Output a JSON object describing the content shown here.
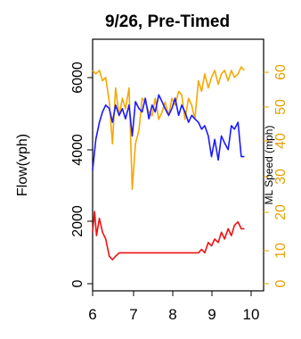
{
  "chart_data": {
    "type": "line",
    "title": "9/26, Pre-Timed",
    "ylabel": "Flow(vph)",
    "y2label": "ML Speed (mph)",
    "xlim": [
      6,
      10
    ],
    "ylim": [
      0,
      6500
    ],
    "y2lim": [
      0,
      65
    ],
    "x_ticks": [
      "6",
      "7",
      "8",
      "9",
      "10"
    ],
    "y_ticks": [
      "0",
      "2000",
      "4000",
      "6000"
    ],
    "y2_ticks": [
      "0",
      "10",
      "20",
      "30",
      "40",
      "50",
      "60"
    ],
    "colors": {
      "speed": "#f5a800",
      "flow": "#1a1aff",
      "ramp": "#ee1111",
      "right_axis": "#e6a200"
    },
    "series": [
      {
        "key": "speed",
        "axis": "right",
        "x": [
          6.0,
          6.08,
          6.17,
          6.25,
          6.33,
          6.42,
          6.5,
          6.58,
          6.67,
          6.75,
          6.83,
          6.92,
          7.0,
          7.08,
          7.17,
          7.25,
          7.33,
          7.42,
          7.5,
          7.58,
          7.67,
          7.75,
          7.83,
          7.92,
          8.0,
          8.08,
          8.17,
          8.25,
          8.33,
          8.42,
          8.5,
          8.58,
          8.67,
          8.75,
          8.83,
          8.92,
          9.0,
          9.08,
          9.17,
          9.25,
          9.33,
          9.42,
          9.5,
          9.58,
          9.67,
          9.75,
          9.83
        ],
        "values": [
          61,
          60,
          61,
          58,
          59,
          52,
          40,
          56,
          48,
          53,
          50,
          56,
          27,
          40,
          44,
          53,
          52,
          49,
          48,
          53,
          47,
          49,
          52,
          48,
          53,
          51,
          55,
          54,
          47,
          53,
          51,
          47,
          58,
          55,
          60,
          56,
          59,
          61,
          57,
          60,
          61,
          58,
          61,
          59,
          60,
          62,
          61
        ]
      },
      {
        "key": "flow",
        "axis": "left",
        "x": [
          6.0,
          6.08,
          6.17,
          6.25,
          6.33,
          6.42,
          6.5,
          6.58,
          6.67,
          6.75,
          6.83,
          6.92,
          7.0,
          7.08,
          7.17,
          7.25,
          7.33,
          7.42,
          7.5,
          7.58,
          7.67,
          7.75,
          7.83,
          7.92,
          8.0,
          8.08,
          8.17,
          8.25,
          8.33,
          8.42,
          8.5,
          8.58,
          8.67,
          8.75,
          8.83,
          8.92,
          9.0,
          9.08,
          9.17,
          9.25,
          9.33,
          9.42,
          9.5,
          9.58,
          9.67,
          9.75,
          9.83
        ],
        "values": [
          3300,
          4200,
          4700,
          5000,
          5200,
          5100,
          4700,
          5200,
          4900,
          5100,
          4800,
          5200,
          4300,
          5300,
          5100,
          5000,
          5400,
          4800,
          5200,
          5000,
          5500,
          5300,
          5100,
          4900,
          5100,
          5400,
          4900,
          5200,
          5000,
          4700,
          4900,
          4800,
          4700,
          4500,
          4600,
          4300,
          3700,
          4200,
          3600,
          4300,
          4100,
          3900,
          4600,
          4500,
          4700,
          3700,
          3700
        ]
      },
      {
        "key": "ramp",
        "axis": "left",
        "x": [
          6.0,
          6.05,
          6.1,
          6.17,
          6.25,
          6.33,
          6.42,
          6.5,
          6.58,
          6.67,
          6.75,
          7.0,
          7.25,
          7.5,
          7.75,
          8.0,
          8.25,
          8.5,
          8.58,
          8.67,
          8.75,
          8.83,
          8.92,
          9.0,
          9.08,
          9.17,
          9.25,
          9.33,
          9.42,
          9.5,
          9.58,
          9.67,
          9.75,
          9.83
        ],
        "values": [
          1500,
          2100,
          1400,
          1900,
          1500,
          1300,
          800,
          700,
          800,
          900,
          900,
          900,
          900,
          900,
          900,
          900,
          900,
          900,
          900,
          900,
          1000,
          900,
          1200,
          1100,
          1300,
          1200,
          1500,
          1300,
          1600,
          1400,
          1700,
          1800,
          1600,
          1600
        ]
      }
    ]
  }
}
